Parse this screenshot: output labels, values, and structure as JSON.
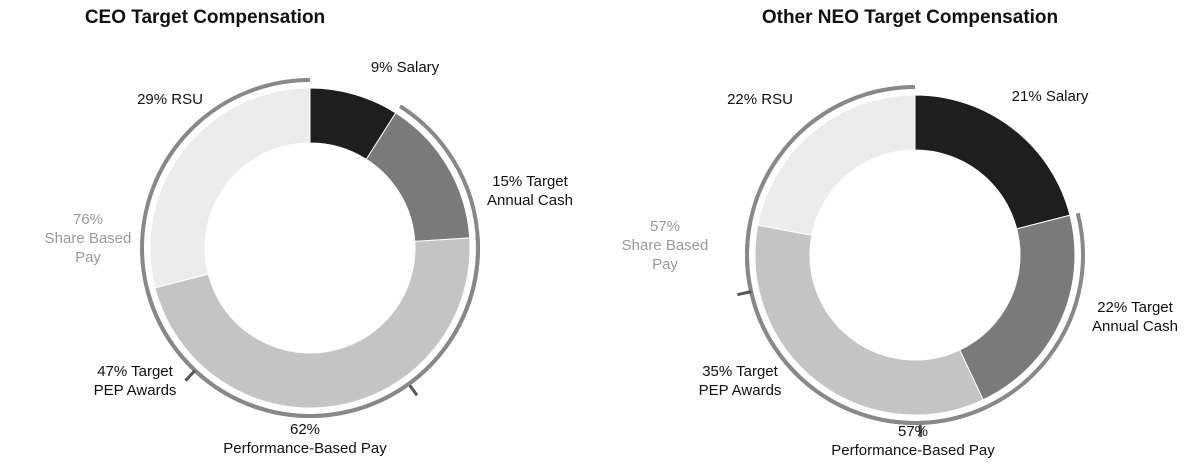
{
  "chart_data": [
    {
      "type": "donut",
      "title": "CEO Target Compensation",
      "values": [
        9,
        15,
        47,
        29
      ],
      "value_labels": [
        [
          "9% Salary"
        ],
        [
          "15% Target",
          "Annual Cash"
        ],
        [
          "47% Target",
          "PEP Awards"
        ],
        [
          "29% RSU"
        ]
      ],
      "colors": [
        "#1e1e1e",
        "#7a7a7a",
        "#c4c4c4",
        "#ececec"
      ],
      "annotations": [
        {
          "value": 62,
          "lines": [
            "62%",
            "Performance-Based Pay"
          ]
        },
        {
          "value": 76,
          "lines": [
            "76%",
            "Share Based",
            "Pay"
          ]
        }
      ]
    },
    {
      "type": "donut",
      "title": "Other NEO Target Compensation",
      "values": [
        21,
        22,
        35,
        22
      ],
      "value_labels": [
        [
          "21% Salary"
        ],
        [
          "22% Target",
          "Annual Cash"
        ],
        [
          "35% Target",
          "PEP Awards"
        ],
        [
          "22% RSU"
        ]
      ],
      "colors": [
        "#1e1e1e",
        "#7a7a7a",
        "#c4c4c4",
        "#ececec"
      ],
      "annotations": [
        {
          "value": 57,
          "lines": [
            "57%",
            "Performance-Based Pay"
          ]
        },
        {
          "value": 57,
          "lines": [
            "57%",
            "Share Based",
            "Pay"
          ]
        }
      ]
    }
  ]
}
